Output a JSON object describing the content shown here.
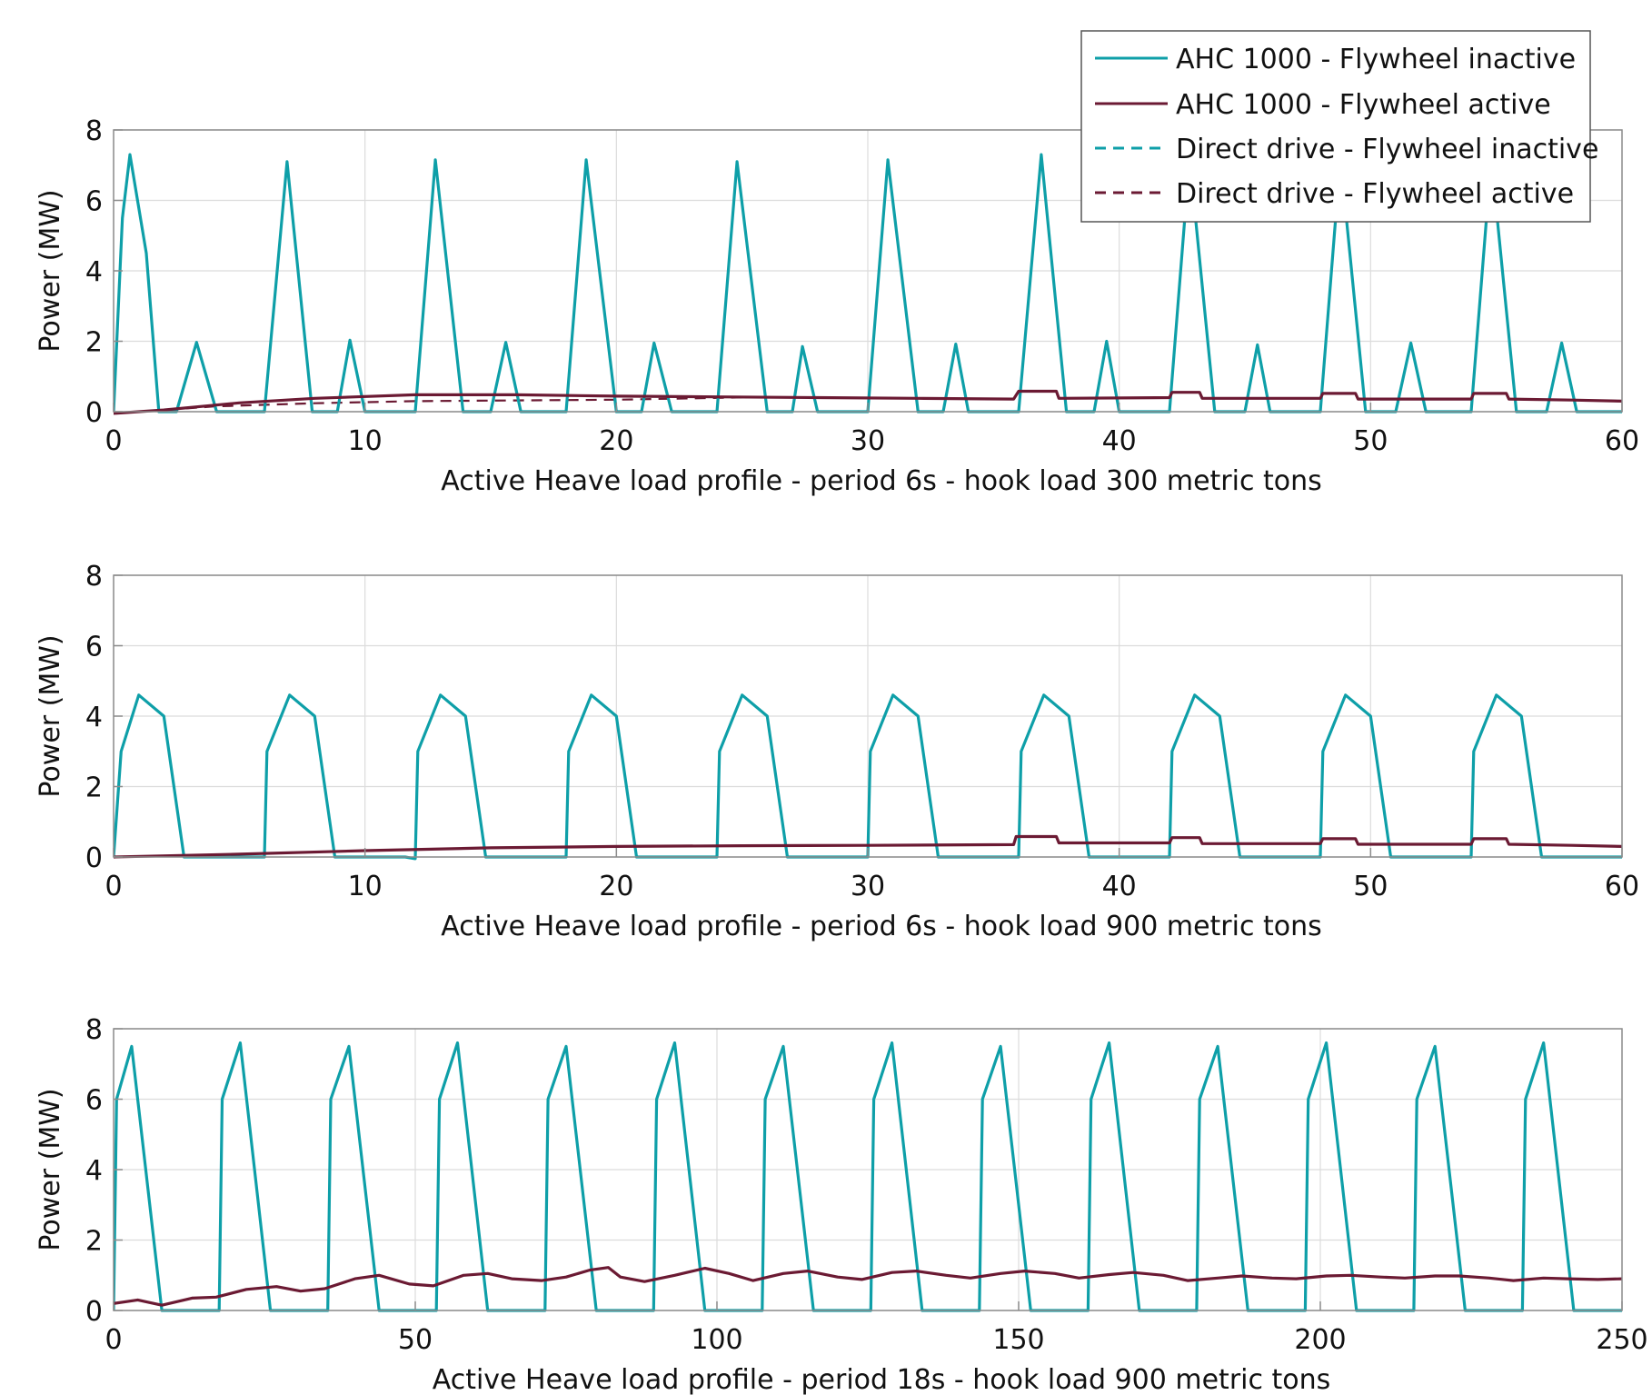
{
  "colors": {
    "ahc_inactive": "#0e9fa8",
    "ahc_active": "#6b1a33",
    "grid": "#dcdcdc",
    "axes": "#8c8c8c"
  },
  "legend": {
    "placement": "top-right",
    "entries": [
      {
        "label": "AHC 1000 - Flywheel inactive",
        "color": "#0e9fa8",
        "style": "solid"
      },
      {
        "label": "AHC 1000 - Flywheel active",
        "color": "#6b1a33",
        "style": "solid"
      },
      {
        "label": "Direct drive - Flywheel inactive",
        "color": "#0e9fa8",
        "style": "dashed"
      },
      {
        "label": "Direct drive - Flywheel active",
        "color": "#6b1a33",
        "style": "dashed"
      }
    ]
  },
  "chart_data": [
    {
      "type": "line",
      "xlabel": "Active Heave load profile - period 6s - hook load 300 metric tons",
      "ylabel": "Power (MW)",
      "xlim": [
        0,
        60
      ],
      "ylim": [
        0,
        8
      ],
      "xticks": [
        0,
        10,
        20,
        30,
        40,
        50,
        60
      ],
      "yticks": [
        0,
        2,
        4,
        6,
        8
      ],
      "grid": true,
      "series": [
        {
          "name": "AHC 1000 - Flywheel inactive",
          "style": "solid",
          "x": [
            0,
            0.35,
            0.65,
            1.3,
            1.8,
            2.1,
            2.5,
            3.3,
            4.1,
            4.4,
            6.0,
            6.9,
            7.9,
            8.9,
            9.4,
            10.0,
            10.5,
            12.0,
            12.8,
            13.9,
            15.0,
            15.6,
            16.2,
            18.0,
            18.8,
            20.0,
            21.0,
            21.5,
            22.2,
            24.0,
            24.8,
            26.0,
            27.0,
            27.4,
            28.0,
            30.0,
            30.8,
            32.0,
            33.0,
            33.5,
            34.0,
            36.0,
            36.9,
            37.9,
            39.0,
            39.5,
            40.0,
            42.0,
            42.8,
            43.8,
            45.0,
            45.5,
            46.0,
            48.0,
            48.8,
            49.8,
            51.0,
            51.6,
            52.2,
            54.0,
            54.8,
            55.8,
            57.0,
            57.6,
            58.2,
            60.0
          ],
          "y": [
            0,
            5.5,
            7.3,
            4.5,
            0,
            0,
            0,
            1.97,
            0,
            0,
            0,
            7.1,
            0,
            0,
            2.03,
            0,
            0,
            0,
            7.15,
            0,
            0,
            1.97,
            0,
            0,
            7.15,
            0,
            0,
            1.95,
            0,
            0,
            7.1,
            0,
            0,
            1.85,
            0,
            0,
            7.15,
            0,
            0,
            1.92,
            0,
            0,
            7.3,
            0,
            0,
            2.0,
            0,
            0,
            7.2,
            0,
            0,
            1.9,
            0,
            0,
            7.2,
            0,
            0,
            1.95,
            0,
            0,
            7.2,
            0,
            0,
            1.95,
            0,
            0
          ]
        },
        {
          "name": "AHC 1000 - Flywheel active",
          "style": "solid",
          "x": [
            0,
            2,
            5,
            8,
            12,
            16,
            20,
            24,
            28,
            32,
            35.8,
            36.0,
            37.5,
            37.6,
            42.0,
            42.1,
            43.2,
            43.3,
            48.0,
            48.1,
            49.4,
            49.5,
            54.0,
            54.1,
            55.4,
            55.5,
            58,
            60
          ],
          "y": [
            -0.05,
            0.05,
            0.25,
            0.38,
            0.48,
            0.48,
            0.44,
            0.42,
            0.4,
            0.38,
            0.36,
            0.58,
            0.58,
            0.38,
            0.4,
            0.55,
            0.55,
            0.38,
            0.38,
            0.52,
            0.52,
            0.36,
            0.36,
            0.52,
            0.52,
            0.36,
            0.33,
            0.3
          ]
        },
        {
          "name": "Direct drive - Flywheel inactive",
          "style": "dashed",
          "x": [
            0,
            0.35,
            0.65,
            1.3,
            1.8,
            2.1,
            2.5,
            3.3,
            4.1,
            4.4,
            6.0,
            6.9,
            7.9,
            8.9,
            9.4,
            10.0,
            10.5,
            12.0,
            12.8,
            13.9,
            15.0,
            15.6,
            16.2,
            18.0,
            18.8,
            20.0,
            21.0,
            21.5,
            22.2,
            24.0,
            24.8,
            26.0,
            27.0,
            27.4,
            28.0,
            30.0,
            30.8,
            32.0,
            33.0,
            33.5,
            34.0,
            36.0,
            36.9,
            37.9,
            39.0,
            39.5,
            40.0,
            42.0,
            42.8,
            43.8,
            45.0,
            45.5,
            46.0,
            48.0,
            48.8,
            49.8,
            51.0,
            51.6,
            52.2,
            54.0,
            54.8,
            55.8,
            57.0,
            57.6,
            58.2,
            60.0
          ],
          "y": [
            0,
            5.5,
            7.3,
            4.5,
            0,
            0,
            0,
            1.97,
            0,
            0,
            0,
            7.1,
            0,
            0,
            2.03,
            0,
            0,
            0,
            7.15,
            0,
            0,
            1.97,
            0,
            0,
            7.15,
            0,
            0,
            1.95,
            0,
            0,
            7.1,
            0,
            0,
            1.85,
            0,
            0,
            7.15,
            0,
            0,
            1.92,
            0,
            0,
            7.3,
            0,
            0,
            2.0,
            0,
            0,
            7.2,
            0,
            0,
            1.9,
            0,
            0,
            7.2,
            0,
            0,
            1.95,
            0,
            0,
            7.2,
            0,
            0,
            1.95,
            0,
            0
          ]
        },
        {
          "name": "Direct drive - Flywheel active",
          "style": "dashed",
          "x": [
            0,
            2,
            4,
            8,
            12,
            16,
            20,
            23,
            26
          ],
          "y": [
            -0.05,
            0.05,
            0.15,
            0.24,
            0.3,
            0.32,
            0.34,
            0.38,
            0.42
          ]
        }
      ]
    },
    {
      "type": "line",
      "xlabel": "Active Heave load profile - period 6s - hook load 900 metric tons",
      "ylabel": "Power (MW)",
      "xlim": [
        0,
        60
      ],
      "ylim": [
        0,
        8
      ],
      "xticks": [
        0,
        10,
        20,
        30,
        40,
        50,
        60
      ],
      "yticks": [
        0,
        2,
        4,
        6,
        8
      ],
      "grid": true,
      "series": [
        {
          "name": "AHC 1000 - Flywheel inactive",
          "style": "solid",
          "x": [
            0,
            0.3,
            1.0,
            2.0,
            2.8,
            6.0,
            6.1,
            7.0,
            8.0,
            8.8,
            11.6,
            12.0,
            12.1,
            13.0,
            14.0,
            14.8,
            18.0,
            18.1,
            19.0,
            20.0,
            20.8,
            24.0,
            24.1,
            25.0,
            26.0,
            26.8,
            30.0,
            30.1,
            31.0,
            32.0,
            32.8,
            36.0,
            36.1,
            37.0,
            38.0,
            38.8,
            42.0,
            42.1,
            43.0,
            44.0,
            44.8,
            48.0,
            48.1,
            49.0,
            50.0,
            50.8,
            54.0,
            54.1,
            55.0,
            56.0,
            56.8,
            60.0
          ],
          "y": [
            0,
            3.0,
            4.6,
            4.0,
            0,
            0,
            3.0,
            4.6,
            4.0,
            0,
            0,
            -0.05,
            3.0,
            4.6,
            4.0,
            0,
            0,
            3.0,
            4.6,
            4.0,
            0,
            0,
            3.0,
            4.6,
            4.0,
            0,
            0,
            3.0,
            4.6,
            4.0,
            0,
            0,
            3.0,
            4.6,
            4.0,
            0,
            0,
            3.0,
            4.6,
            4.0,
            0,
            0,
            3.0,
            4.6,
            4.0,
            0,
            0,
            3.0,
            4.6,
            4.0,
            0,
            0
          ]
        },
        {
          "name": "AHC 1000 - Flywheel active",
          "style": "solid",
          "x": [
            0,
            5,
            10,
            15,
            20,
            25,
            30,
            35.8,
            35.9,
            37.5,
            37.6,
            42.0,
            42.1,
            43.2,
            43.3,
            48.0,
            48.1,
            49.4,
            49.5,
            54.0,
            54.1,
            55.4,
            55.5,
            58,
            60
          ],
          "y": [
            0,
            0.08,
            0.18,
            0.26,
            0.3,
            0.32,
            0.33,
            0.35,
            0.58,
            0.58,
            0.4,
            0.4,
            0.55,
            0.55,
            0.38,
            0.38,
            0.52,
            0.52,
            0.36,
            0.36,
            0.52,
            0.52,
            0.36,
            0.33,
            0.3
          ]
        }
      ]
    },
    {
      "type": "line",
      "xlabel": "Active Heave load profile - period 18s - hook load 900 metric tons",
      "ylabel": "Power (MW)",
      "xlim": [
        0,
        250
      ],
      "ylim": [
        0,
        8
      ],
      "xticks": [
        0,
        50,
        100,
        150,
        200,
        250
      ],
      "yticks": [
        0,
        2,
        4,
        6,
        8
      ],
      "grid": true,
      "series": [
        {
          "name": "AHC 1000 - Flywheel inactive",
          "style": "solid",
          "x": [
            0,
            0.5,
            3,
            8,
            17.5,
            18,
            21,
            26,
            35.5,
            36,
            39,
            44,
            53.5,
            54,
            57,
            62,
            71.5,
            72,
            75,
            80,
            89.5,
            90,
            93,
            98,
            107.5,
            108,
            111,
            116,
            125.5,
            126,
            129,
            134,
            143.5,
            144,
            147,
            152,
            161.5,
            162,
            165,
            170,
            179.5,
            180,
            183,
            188,
            197.5,
            198,
            201,
            206,
            215.5,
            216,
            219,
            224,
            233.5,
            234,
            237,
            242,
            250
          ],
          "y": [
            0,
            6.0,
            7.5,
            0,
            0,
            6.0,
            7.6,
            0,
            0,
            6.0,
            7.5,
            0,
            0,
            6.0,
            7.6,
            0,
            0,
            6.0,
            7.5,
            0,
            0,
            6.0,
            7.6,
            0,
            0,
            6.0,
            7.5,
            0,
            0,
            6.0,
            7.6,
            0,
            0,
            6.0,
            7.5,
            0,
            0,
            6.0,
            7.6,
            0,
            0,
            6.0,
            7.5,
            0,
            0,
            6.0,
            7.6,
            0,
            0,
            6.0,
            7.5,
            0,
            0,
            6.0,
            7.6,
            0,
            0
          ]
        },
        {
          "name": "AHC 1000 - Flywheel active",
          "style": "solid",
          "x": [
            0,
            4,
            8,
            13,
            17,
            22,
            27,
            31,
            35,
            40,
            44,
            49,
            53,
            58,
            62,
            66,
            71,
            75,
            79,
            82,
            84,
            88,
            93,
            98,
            102,
            106,
            111,
            115,
            120,
            124,
            129,
            133,
            138,
            142,
            147,
            151,
            156,
            160,
            165,
            169,
            174,
            178,
            183,
            187,
            192,
            196,
            201,
            205,
            210,
            214,
            219,
            223,
            228,
            232,
            237,
            241,
            246,
            250
          ],
          "y": [
            0.2,
            0.3,
            0.15,
            0.35,
            0.38,
            0.6,
            0.68,
            0.55,
            0.62,
            0.9,
            1.0,
            0.75,
            0.7,
            1.0,
            1.05,
            0.9,
            0.85,
            0.95,
            1.15,
            1.22,
            0.95,
            0.82,
            1.0,
            1.2,
            1.05,
            0.85,
            1.05,
            1.12,
            0.95,
            0.88,
            1.08,
            1.12,
            1.0,
            0.92,
            1.05,
            1.12,
            1.05,
            0.92,
            1.02,
            1.08,
            1.0,
            0.85,
            0.92,
            0.98,
            0.92,
            0.9,
            0.98,
            1.0,
            0.95,
            0.92,
            0.98,
            0.98,
            0.92,
            0.85,
            0.92,
            0.9,
            0.88,
            0.9
          ]
        }
      ]
    }
  ]
}
